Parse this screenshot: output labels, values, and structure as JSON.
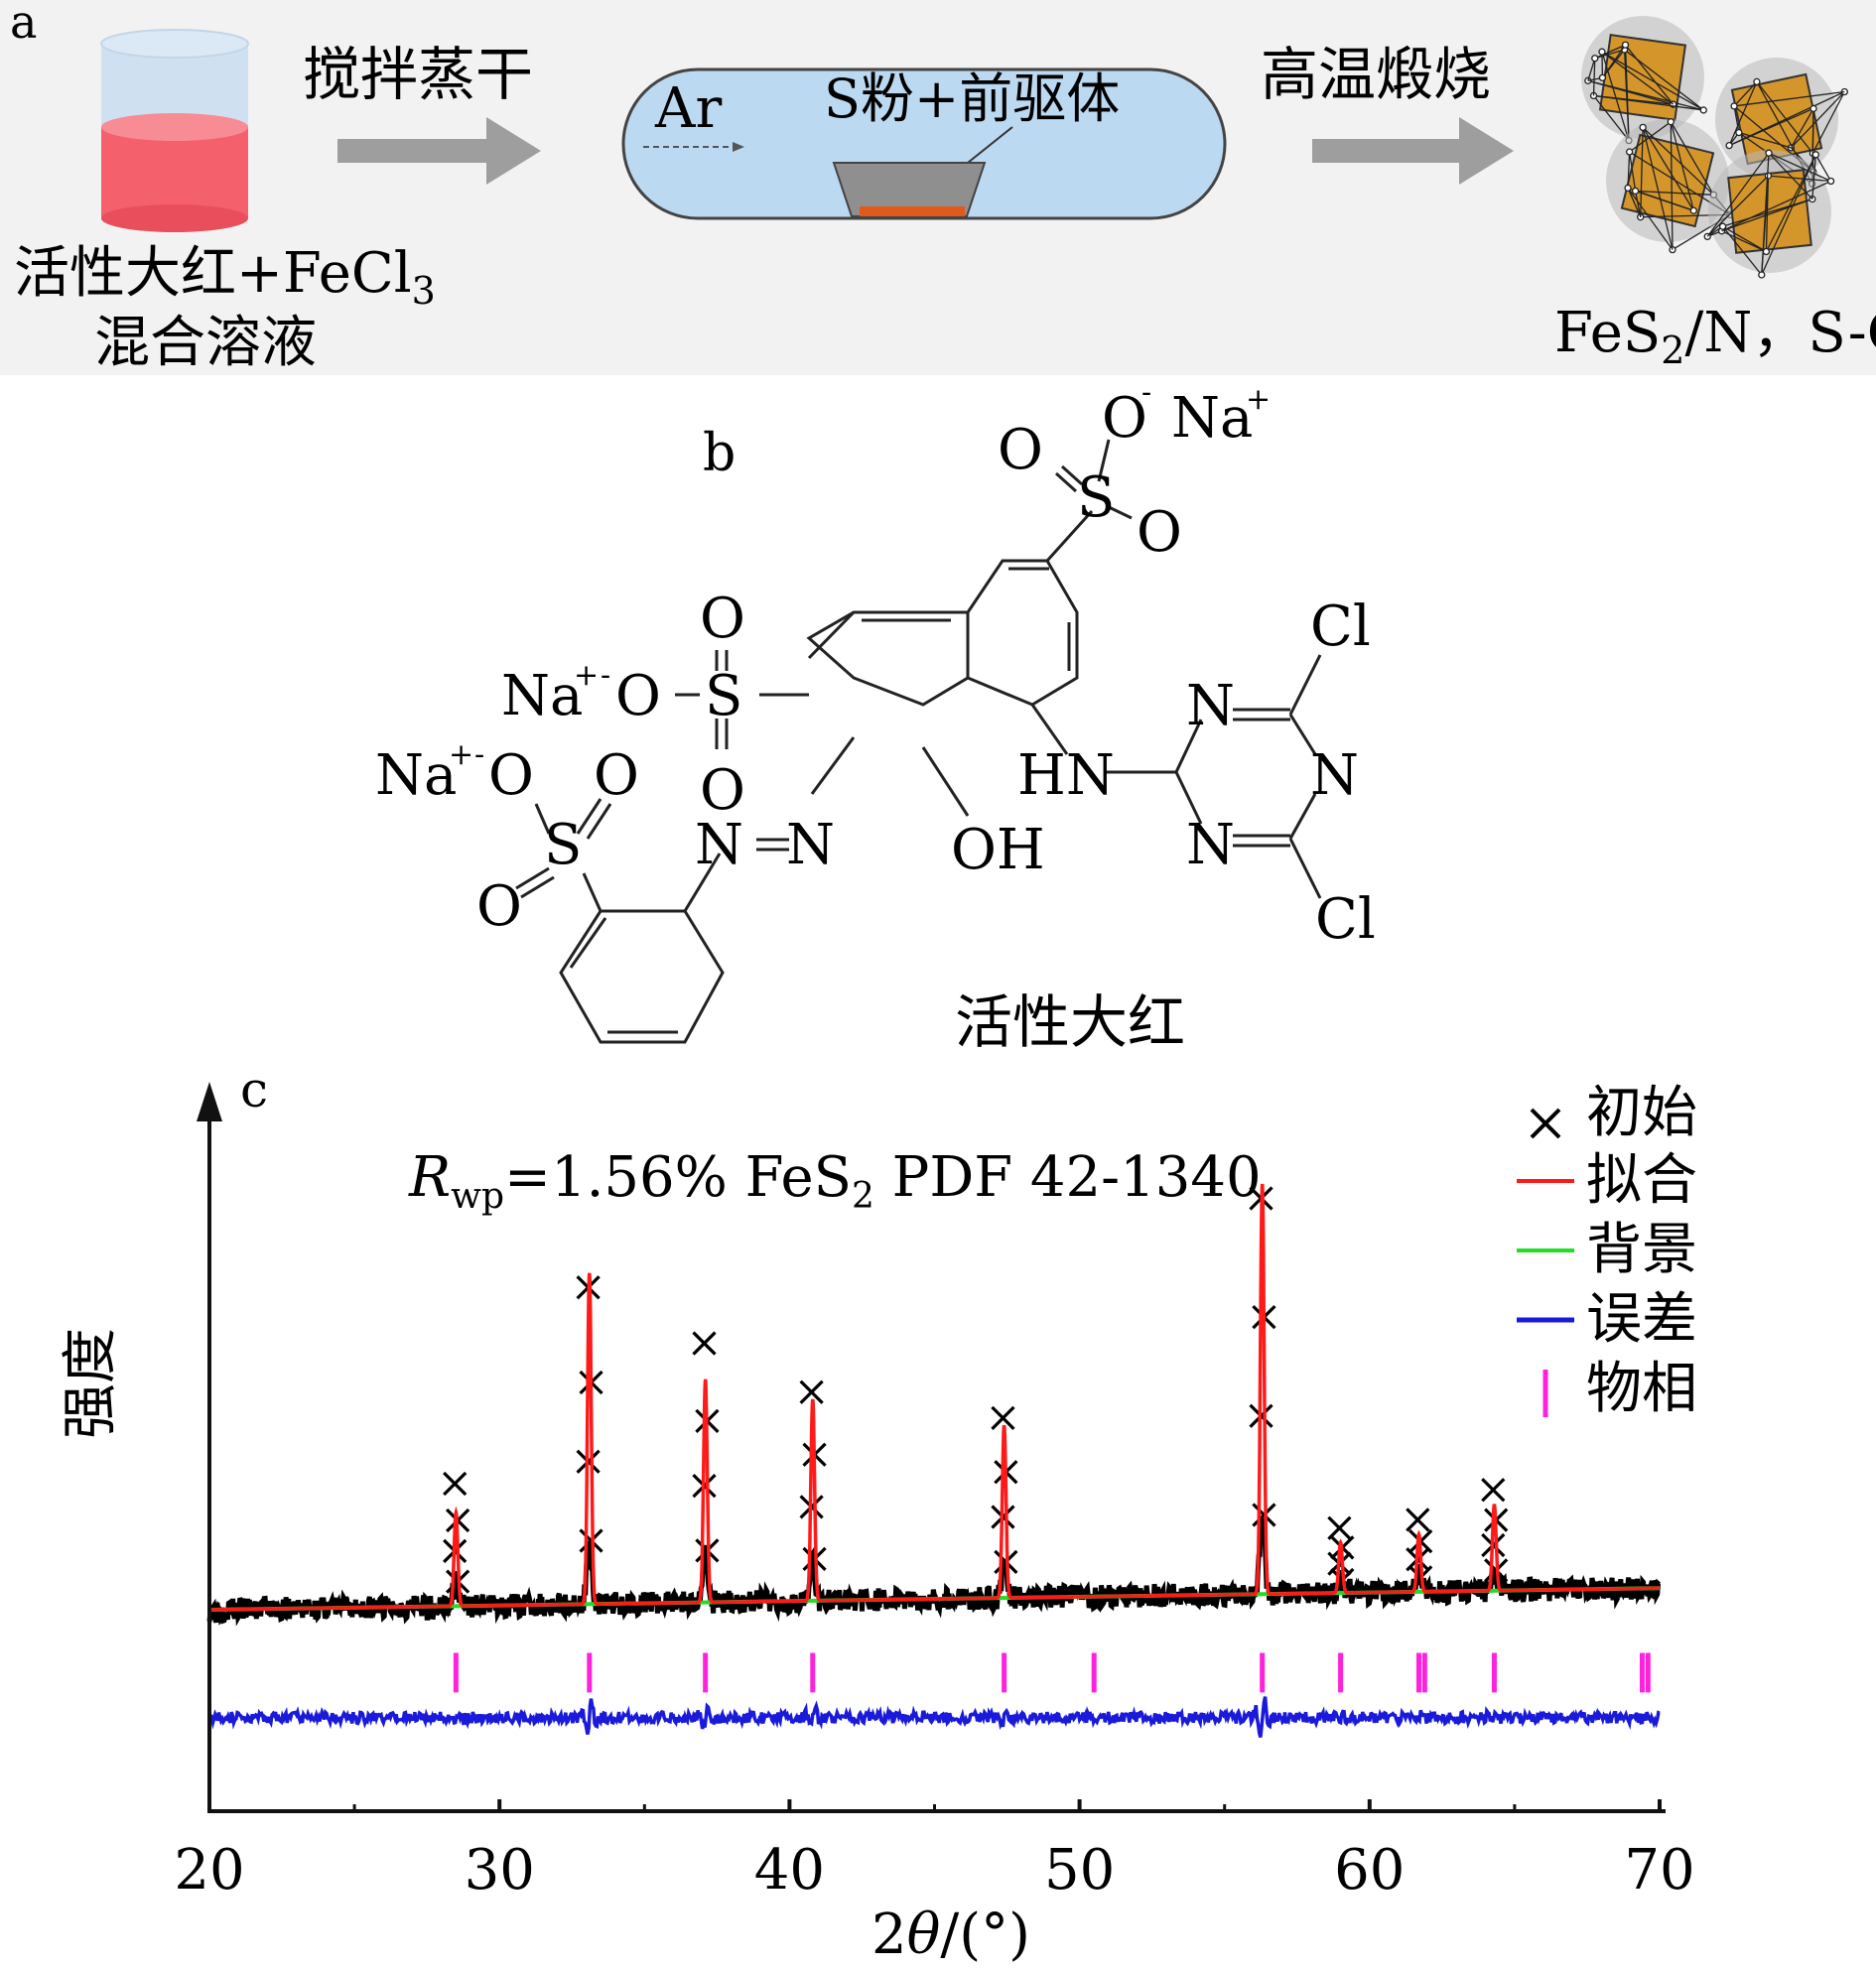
{
  "panel_a": {
    "label": "a",
    "solution_line1": "活性大红+FeCl",
    "solution_sub": "3",
    "solution_line2": "混合溶液",
    "step1_label": "搅拌蒸干",
    "tube_gas": "Ar",
    "tube_label": "S粉+前驱体",
    "step2_label": "高温煅烧",
    "product_prefix": "FeS",
    "product_sub": "2",
    "product_suffix": "/N，S-C",
    "colors": {
      "liquid": "#f4606c",
      "tube": "#bcd9f2",
      "arrow": "#9e9e9e",
      "particle": "#d4952a",
      "boat": "#e05a1c"
    }
  },
  "panel_b": {
    "label": "b",
    "molecule_name": "活性大红",
    "atoms": {
      "o_minus_top": "O",
      "o_minus_top_charge": "-",
      "na_top": "Na",
      "na_top_charge": "+",
      "o_top_left": "O",
      "s_top": "S",
      "o_top_right": "O",
      "o_up": "O",
      "na_mid": "Na",
      "na_mid_charge": "+",
      "o_mid_charge": "-",
      "o_mid": "O",
      "s_mid": "S",
      "o_down": "O",
      "na_low": "Na",
      "na_low_charge": "+",
      "o_low_charge": "-",
      "o_low": "O",
      "o_low_right": "O",
      "s_low": "S",
      "o_low_bottom": "O",
      "n_azo_1": "N",
      "n_azo_2": "N",
      "oh": "OH",
      "hn": "HN",
      "n_tri_1": "N",
      "n_tri_2": "N",
      "n_tri_3": "N",
      "cl_1": "Cl",
      "cl_2": "Cl"
    }
  },
  "panel_c": {
    "label": "c",
    "y_label": "强度",
    "annotation_r": "R",
    "annotation_sub": "wp",
    "annotation_rest": "=1.56%  FeS",
    "annotation_sub2": "2",
    "annotation_pdf": "  PDF 42-1340",
    "legend": [
      "初始",
      "拟合",
      "背景",
      "误差",
      "物相"
    ],
    "x_label_num": "2",
    "x_label_theta": "θ",
    "x_label_unit": "/(°)"
  },
  "chart_data": {
    "type": "scatter",
    "title": "",
    "xlabel": "2θ/(°)",
    "ylabel": "强度",
    "xlim": [
      20,
      70
    ],
    "ylim": [
      0,
      100
    ],
    "x_ticks": [
      20,
      30,
      40,
      50,
      60,
      70
    ],
    "grid": false,
    "legend_position": "top-right",
    "series": [
      {
        "name": "初始",
        "marker": "x",
        "color": "#000000",
        "peaks": [
          [
            28.5,
            17
          ],
          [
            33.1,
            44
          ],
          [
            37.1,
            36
          ],
          [
            40.8,
            29
          ],
          [
            47.4,
            25
          ],
          [
            56.3,
            55
          ],
          [
            59.0,
            9
          ],
          [
            61.7,
            10
          ],
          [
            64.3,
            14
          ]
        ]
      },
      {
        "name": "拟合",
        "marker": "line",
        "color": "#ff1a1a",
        "peaks": [
          [
            28.5,
            13
          ],
          [
            33.1,
            46
          ],
          [
            37.1,
            31
          ],
          [
            40.8,
            28
          ],
          [
            47.4,
            24
          ],
          [
            56.3,
            57
          ],
          [
            59.0,
            7
          ],
          [
            61.7,
            8
          ],
          [
            64.3,
            12
          ]
        ]
      },
      {
        "name": "背景",
        "marker": "line",
        "color": "#22dd22",
        "x": [
          20,
          70
        ],
        "y": [
          28,
          31
        ]
      },
      {
        "name": "误差",
        "marker": "line",
        "color": "#1a1adb",
        "baseline": 13
      },
      {
        "name": "物相",
        "marker": "tick",
        "color": "#ff22dd",
        "x": [
          28.5,
          33.1,
          37.1,
          40.8,
          47.4,
          50.5,
          56.3,
          59.0,
          61.7,
          61.9,
          64.3,
          69.4,
          69.6
        ]
      }
    ]
  }
}
